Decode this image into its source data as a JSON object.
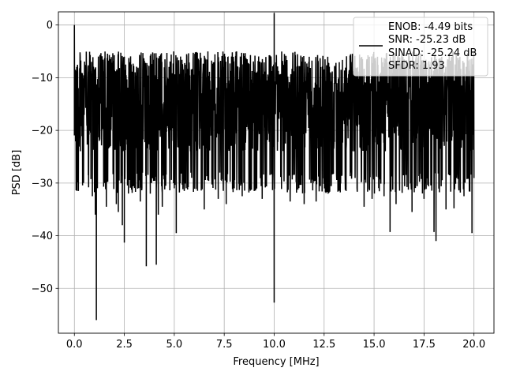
{
  "chart_data": {
    "type": "line",
    "xlabel": "Frequency [MHz]",
    "ylabel": "PSD [dB]",
    "xlim": [
      -0.8,
      21.0
    ],
    "ylim": [
      -58.5,
      2.5
    ],
    "x_ticks": [
      0.0,
      2.5,
      5.0,
      7.5,
      10.0,
      12.5,
      15.0,
      17.5,
      20.0
    ],
    "x_tick_labels": [
      "0.0",
      "2.5",
      "5.0",
      "7.5",
      "10.0",
      "12.5",
      "15.0",
      "17.5",
      "20.0"
    ],
    "y_ticks": [
      0,
      -10,
      -20,
      -30,
      -40,
      -50
    ],
    "y_tick_labels": [
      "0",
      "−10",
      "−20",
      "−30",
      "−40",
      "−50"
    ],
    "grid": true,
    "legend_position": "top-right",
    "legend_lines": [
      "ENOB: -4.49 bits",
      "SNR: -25.23 dB",
      "SINAD: -25.24 dB",
      "SFDR: 1.93"
    ],
    "series": [
      {
        "color": "#000000",
        "x_range": [
          0.0,
          20.0
        ],
        "points": 2048,
        "typical_range_db": [
          -28,
          -5
        ],
        "spikes": [
          {
            "x": 0.0,
            "y": 0.0
          },
          {
            "x": 0.05,
            "y": -8.5
          },
          {
            "x": 0.1,
            "y": -17.5
          },
          {
            "x": 0.2,
            "y": -31.5
          },
          {
            "x": 0.7,
            "y": -28.5
          },
          {
            "x": 0.9,
            "y": -32.5
          },
          {
            "x": 1.05,
            "y": -36.0
          },
          {
            "x": 1.1,
            "y": -56.0
          },
          {
            "x": 1.6,
            "y": -34.5
          },
          {
            "x": 2.1,
            "y": -34.0
          },
          {
            "x": 2.2,
            "y": -35.5
          },
          {
            "x": 2.4,
            "y": -38.0
          },
          {
            "x": 2.5,
            "y": -41.3
          },
          {
            "x": 2.5,
            "y": -6.0
          },
          {
            "x": 3.3,
            "y": -33.5
          },
          {
            "x": 3.6,
            "y": -45.8
          },
          {
            "x": 3.8,
            "y": -32.0
          },
          {
            "x": 4.1,
            "y": -45.5
          },
          {
            "x": 4.2,
            "y": -36.0
          },
          {
            "x": 4.4,
            "y": -34.5
          },
          {
            "x": 5.0,
            "y": -31.0
          },
          {
            "x": 5.1,
            "y": -39.5
          },
          {
            "x": 5.5,
            "y": -31.5
          },
          {
            "x": 6.5,
            "y": -35.0
          },
          {
            "x": 7.2,
            "y": -33.0
          },
          {
            "x": 7.6,
            "y": -34.0
          },
          {
            "x": 8.0,
            "y": -31.0
          },
          {
            "x": 8.4,
            "y": -32.5
          },
          {
            "x": 9.0,
            "y": -31.5
          },
          {
            "x": 9.4,
            "y": -33.0
          },
          {
            "x": 10.0,
            "y": 2.3
          },
          {
            "x": 10.0,
            "y": -52.7
          },
          {
            "x": 10.8,
            "y": -33.5
          },
          {
            "x": 11.5,
            "y": -34.0
          },
          {
            "x": 12.1,
            "y": -33.5
          },
          {
            "x": 12.7,
            "y": -32.0
          },
          {
            "x": 13.6,
            "y": -31.5
          },
          {
            "x": 14.5,
            "y": -34.5
          },
          {
            "x": 14.9,
            "y": -33.0
          },
          {
            "x": 15.5,
            "y": -32.5
          },
          {
            "x": 15.8,
            "y": -39.3
          },
          {
            "x": 16.1,
            "y": -34.0
          },
          {
            "x": 16.9,
            "y": -35.5
          },
          {
            "x": 17.5,
            "y": -33.0
          },
          {
            "x": 18.0,
            "y": -39.3
          },
          {
            "x": 18.1,
            "y": -41.0
          },
          {
            "x": 18.6,
            "y": -35.0
          },
          {
            "x": 19.0,
            "y": -34.8
          },
          {
            "x": 19.5,
            "y": -32.5
          },
          {
            "x": 19.9,
            "y": -39.5
          },
          {
            "x": 20.0,
            "y": -26.0
          }
        ]
      }
    ]
  }
}
